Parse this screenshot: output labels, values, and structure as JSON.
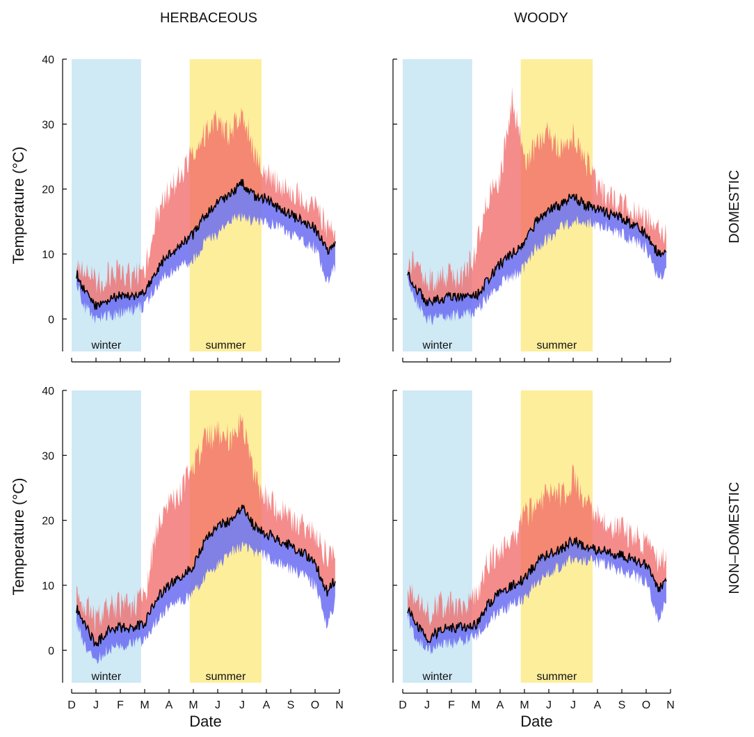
{
  "column_titles": [
    "HERBACEOUS",
    "WOODY"
  ],
  "row_titles": [
    "DOMESTIC",
    "NON–DOMESTIC"
  ],
  "colors": {
    "winter_band": "#cfe9f5",
    "summer_band": "#fdee9c",
    "upper_band": "#f06565",
    "lower_band": "#6a6cf2",
    "overlap_band": "#b86ab8",
    "median_line": "#000000",
    "winter_text": "#4a6d80",
    "summer_text": "#8a7a10"
  },
  "chart_data": [
    {
      "type": "area",
      "panel": "herbaceous-domestic",
      "column": "HERBACEOUS",
      "row": "DOMESTIC",
      "ylabel": "Temperature (°C)",
      "xlabel": "",
      "ylim": [
        -5,
        40
      ],
      "yticks": [
        0,
        10,
        20,
        30,
        40
      ],
      "xticks": [
        "D",
        "J",
        "F",
        "M",
        "A",
        "M",
        "J",
        "J",
        "A",
        "S",
        "O",
        "N"
      ],
      "shaded_periods": [
        {
          "label": "winter",
          "from_month": 0,
          "to_month": 2.85
        },
        {
          "label": "summer",
          "from_month": 4.85,
          "to_month": 7.8
        }
      ],
      "x_month": [
        0.2,
        0.5,
        1,
        1.5,
        2,
        2.5,
        3,
        3.5,
        4,
        4.5,
        5,
        5.5,
        6,
        6.5,
        7,
        7.5,
        8,
        8.5,
        9,
        9.5,
        10,
        10.5,
        10.85
      ],
      "median": [
        7,
        4.5,
        2,
        3,
        3.5,
        3.5,
        4,
        7.5,
        10,
        11.5,
        13,
        16,
        18,
        19,
        21,
        19,
        18.5,
        17,
        16,
        15,
        14,
        10.5,
        11.5
      ],
      "upper": [
        8,
        7,
        5,
        6.5,
        6.5,
        6,
        7,
        16,
        19,
        22,
        25,
        28,
        30,
        28,
        32,
        25,
        22,
        20,
        19,
        18,
        17,
        13.5,
        14
      ],
      "lower": [
        5.5,
        2,
        0,
        0.5,
        1,
        1.5,
        2,
        5,
        7,
        8,
        9,
        12,
        13,
        15,
        16,
        15,
        15,
        14,
        13,
        12,
        11,
        6,
        8
      ]
    },
    {
      "type": "area",
      "panel": "woody-domestic",
      "column": "WOODY",
      "row": "DOMESTIC",
      "ylabel": "",
      "xlabel": "",
      "ylim": [
        -5,
        40
      ],
      "yticks": [
        0,
        10,
        20,
        30,
        40
      ],
      "xticks": [
        "D",
        "J",
        "F",
        "M",
        "A",
        "M",
        "J",
        "J",
        "A",
        "S",
        "O",
        "N"
      ],
      "shaded_periods": [
        {
          "label": "winter",
          "from_month": 0,
          "to_month": 2.85
        },
        {
          "label": "summer",
          "from_month": 4.85,
          "to_month": 7.8
        }
      ],
      "x_month": [
        0.2,
        0.5,
        1,
        1.5,
        2,
        2.5,
        3,
        3.5,
        4,
        4.5,
        5,
        5.5,
        6,
        6.5,
        7,
        7.5,
        8,
        8.5,
        9,
        9.5,
        10,
        10.5,
        10.85
      ],
      "median": [
        7.5,
        5,
        2.5,
        3,
        3.5,
        3.5,
        3.5,
        6,
        8.5,
        10,
        12,
        15,
        17,
        17.5,
        19,
        17.5,
        17,
        16,
        15.5,
        14.5,
        13,
        10,
        11
      ],
      "upper": [
        9,
        7.5,
        5.5,
        6,
        6.5,
        6,
        10,
        18,
        21,
        34,
        24,
        26,
        28,
        26,
        28,
        24,
        20,
        18,
        17,
        16,
        15,
        13,
        13.5
      ],
      "lower": [
        6.5,
        3,
        0,
        0,
        0.5,
        1,
        1,
        3.5,
        5.5,
        6.5,
        8,
        11,
        12.5,
        14,
        15,
        15,
        14.5,
        14,
        13,
        12,
        11,
        6,
        8
      ]
    },
    {
      "type": "area",
      "panel": "herbaceous-nondomestic",
      "column": "HERBACEOUS",
      "row": "NON–DOMESTIC",
      "ylabel": "Temperature (°C)",
      "xlabel": "Date",
      "ylim": [
        -5,
        40
      ],
      "yticks": [
        0,
        10,
        20,
        30,
        40
      ],
      "xticks": [
        "D",
        "J",
        "F",
        "M",
        "A",
        "M",
        "J",
        "J",
        "A",
        "S",
        "O",
        "N"
      ],
      "shaded_periods": [
        {
          "label": "winter",
          "from_month": 0,
          "to_month": 2.85
        },
        {
          "label": "summer",
          "from_month": 4.85,
          "to_month": 7.8
        }
      ],
      "x_month": [
        0.2,
        0.5,
        1,
        1.5,
        2,
        2.5,
        3,
        3.5,
        4,
        4.5,
        5,
        5.5,
        6,
        6.5,
        7,
        7.5,
        8,
        8.5,
        9,
        9.5,
        10,
        10.5,
        10.85
      ],
      "median": [
        6.5,
        4,
        1,
        3,
        3.5,
        3.5,
        4,
        8,
        10,
        11.5,
        13,
        17,
        19,
        20,
        22,
        19,
        18,
        17,
        16,
        15,
        13.5,
        9,
        11
      ],
      "upper": [
        8,
        7,
        4,
        6,
        6.5,
        6,
        8,
        18,
        22,
        24,
        28,
        32,
        33,
        32,
        35,
        26,
        23,
        21,
        20,
        19,
        17,
        14,
        16
      ],
      "lower": [
        4.5,
        1,
        -1.5,
        0,
        0.5,
        1,
        1.5,
        4.5,
        6.5,
        7.5,
        8.5,
        11.5,
        13,
        15,
        16,
        15,
        14.5,
        13.5,
        12.5,
        11.5,
        10,
        3.5,
        8
      ]
    },
    {
      "type": "area",
      "panel": "woody-nondomestic",
      "column": "WOODY",
      "row": "NON–DOMESTIC",
      "ylabel": "",
      "xlabel": "Date",
      "ylim": [
        -5,
        40
      ],
      "yticks": [
        0,
        10,
        20,
        30,
        40
      ],
      "xticks": [
        "D",
        "J",
        "F",
        "M",
        "A",
        "M",
        "J",
        "J",
        "A",
        "S",
        "O",
        "N"
      ],
      "shaded_periods": [
        {
          "label": "winter",
          "from_month": 0,
          "to_month": 2.85
        },
        {
          "label": "summer",
          "from_month": 4.85,
          "to_month": 7.8
        }
      ],
      "x_month": [
        0.2,
        0.5,
        1,
        1.5,
        2,
        2.5,
        3,
        3.5,
        4,
        4.5,
        5,
        5.5,
        6,
        6.5,
        7,
        7.5,
        8,
        8.5,
        9,
        9.5,
        10,
        10.5,
        10.85
      ],
      "median": [
        6.5,
        4.5,
        1.5,
        3,
        3.5,
        3.5,
        4,
        7,
        9,
        10,
        11,
        13.5,
        15,
        15.5,
        17,
        16,
        15.5,
        15,
        14.5,
        14,
        13,
        9.5,
        10.5
      ],
      "upper": [
        8.5,
        7.5,
        5,
        6.5,
        6.5,
        6,
        8,
        13,
        15,
        16.5,
        20,
        22,
        24,
        23,
        26,
        22,
        20,
        19,
        18,
        17,
        16,
        13,
        13.5
      ],
      "lower": [
        5,
        2,
        0,
        0.5,
        1,
        1.5,
        2,
        4.5,
        6,
        7,
        8,
        10.5,
        12,
        13,
        14,
        14,
        13.5,
        13,
        12,
        11.5,
        10.5,
        4.5,
        8
      ]
    }
  ]
}
